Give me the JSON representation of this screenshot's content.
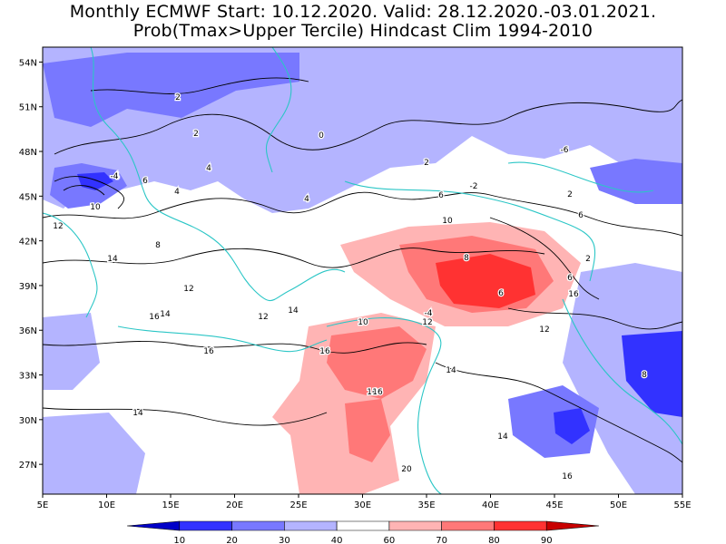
{
  "title_line1": "Monthly ECMWF Start: 10.12.2020. Valid: 28.12.2020.-03.01.2021.",
  "title_line2": "Prob(Tmax>Upper Tercile) Hindcast Clim 1994-2010",
  "map": {
    "lon_range": [
      5,
      55
    ],
    "lat_range": [
      25,
      55
    ],
    "lon_ticks": [
      "5E",
      "10E",
      "15E",
      "20E",
      "25E",
      "30E",
      "35E",
      "40E",
      "45E",
      "50E",
      "55E"
    ],
    "lat_ticks": [
      "54N",
      "51N",
      "48N",
      "45N",
      "42N",
      "39N",
      "36N",
      "33N",
      "30N",
      "27N"
    ]
  },
  "colorbar": {
    "ticks": [
      "10",
      "20",
      "30",
      "40",
      "60",
      "70",
      "80",
      "90"
    ],
    "colors": [
      "#0000c8",
      "#3232ff",
      "#7878ff",
      "#b4b4ff",
      "#ffffff",
      "#ffb4b4",
      "#ff7878",
      "#ff3232",
      "#c80000"
    ]
  },
  "contour_labels": [
    "2",
    "0",
    "2",
    "-4",
    "6",
    "4",
    "4",
    "10",
    "12",
    "14",
    "8",
    "2",
    "4",
    "6",
    "-2",
    "-6",
    "6",
    "2",
    "10",
    "8",
    "12",
    "16",
    "14",
    "16",
    "12",
    "14",
    "-4",
    "8",
    "2",
    "6",
    "16",
    "16",
    "14",
    "12",
    "14",
    "16",
    "10",
    "-4",
    "12",
    "6",
    "16",
    "20",
    "14",
    "16",
    "14"
  ]
}
